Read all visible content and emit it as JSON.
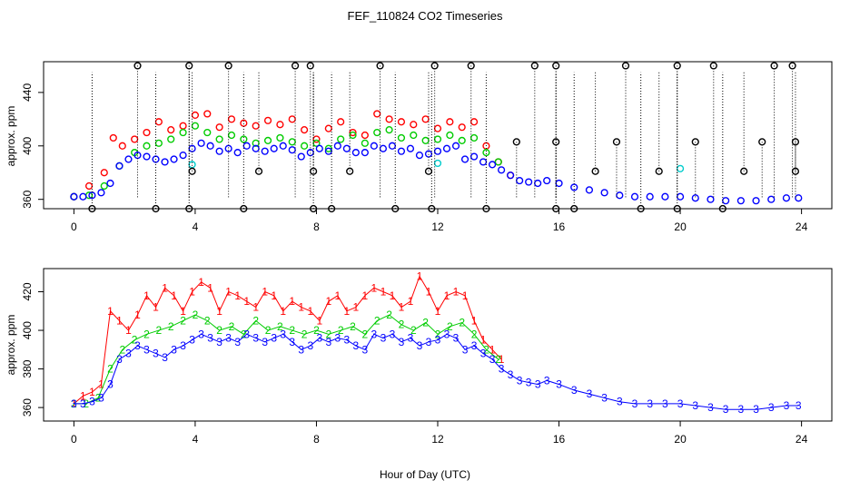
{
  "figure": {
    "title": "FEF_110824  CO2 Timeseries",
    "xlabel": "Hour of Day (UTC)"
  },
  "colors": {
    "series1": "#ff0000",
    "series2": "#00cc00",
    "series3": "#0000ff",
    "series4": "#00cccc",
    "outlier": "#000000"
  },
  "chart_data": [
    {
      "type": "scatter",
      "panel": "top",
      "ylabel": "approx. ppm",
      "xlim": [
        -1,
        25
      ],
      "ylim": [
        353,
        463
      ],
      "x_ticks": [
        0,
        4,
        8,
        12,
        16,
        20,
        24
      ],
      "y_ticks": [
        360,
        400,
        440
      ],
      "grid": false,
      "series": [
        {
          "color": "#ff0000",
          "marker": "circle",
          "x": [
            0,
            0.5,
            1,
            1.3,
            1.6,
            2,
            2.4,
            2.8,
            3.2,
            3.6,
            4,
            4.4,
            4.8,
            5.2,
            5.6,
            6,
            6.4,
            6.8,
            7.2,
            7.6,
            8,
            8.4,
            8.8,
            9.2,
            9.6,
            10,
            10.4,
            10.8,
            11.2,
            11.6,
            12,
            12.4,
            12.8,
            13.2,
            13.6,
            14,
            14.4
          ],
          "y": [
            362,
            370,
            380,
            406,
            400,
            405,
            410,
            418,
            412,
            415,
            423,
            424,
            414,
            420,
            417,
            415,
            419,
            416,
            420,
            412,
            405,
            413,
            418,
            410,
            408,
            424,
            420,
            418,
            416,
            420,
            413,
            418,
            414,
            418,
            400,
            388,
            378
          ]
        },
        {
          "color": "#00cc00",
          "marker": "circle",
          "x": [
            0,
            0.5,
            1,
            1.5,
            2,
            2.4,
            2.8,
            3.2,
            3.6,
            4,
            4.4,
            4.8,
            5.2,
            5.6,
            6,
            6.4,
            6.8,
            7.2,
            7.6,
            8,
            8.4,
            8.8,
            9.2,
            9.6,
            10,
            10.4,
            10.8,
            11.2,
            11.6,
            12,
            12.4,
            12.8,
            13.2,
            13.6,
            14
          ],
          "y": [
            362,
            363,
            370,
            385,
            395,
            400,
            402,
            405,
            410,
            415,
            410,
            405,
            408,
            405,
            402,
            404,
            406,
            403,
            400,
            402,
            398,
            405,
            408,
            402,
            410,
            412,
            406,
            408,
            404,
            405,
            408,
            404,
            406,
            395,
            388
          ]
        },
        {
          "color": "#0000ff",
          "marker": "circle",
          "x": [
            0,
            0.3,
            0.6,
            0.9,
            1.2,
            1.5,
            1.8,
            2.1,
            2.4,
            2.7,
            3,
            3.3,
            3.6,
            3.9,
            4.2,
            4.5,
            4.8,
            5.1,
            5.4,
            5.7,
            6,
            6.3,
            6.6,
            6.9,
            7.2,
            7.5,
            7.8,
            8.1,
            8.4,
            8.7,
            9,
            9.3,
            9.6,
            9.9,
            10.2,
            10.5,
            10.8,
            11.1,
            11.4,
            11.7,
            12,
            12.3,
            12.6,
            12.9,
            13.2,
            13.5,
            13.8,
            14.1,
            14.4,
            14.7,
            15,
            15.3,
            15.6,
            16,
            16.5,
            17,
            17.5,
            18,
            18.5,
            19,
            19.5,
            20,
            20.5,
            21,
            21.5,
            22,
            22.5,
            23,
            23.5,
            23.9
          ],
          "y": [
            362,
            362,
            363,
            365,
            372,
            385,
            390,
            393,
            392,
            390,
            388,
            390,
            393,
            398,
            402,
            400,
            396,
            398,
            395,
            400,
            398,
            396,
            398,
            400,
            397,
            392,
            395,
            398,
            396,
            400,
            398,
            395,
            395,
            400,
            398,
            400,
            396,
            398,
            393,
            394,
            396,
            398,
            400,
            390,
            392,
            388,
            386,
            382,
            378,
            374,
            373,
            372,
            374,
            372,
            369,
            367,
            365,
            363,
            362,
            362,
            362,
            362,
            361,
            360,
            359,
            359,
            359,
            360,
            361,
            361
          ]
        },
        {
          "color": "#00cccc",
          "marker": "circle",
          "x": [
            3.9,
            12,
            20
          ],
          "y": [
            386,
            387,
            383
          ]
        },
        {
          "color": "#000000",
          "marker": "circle",
          "x": [
            2.1,
            3.8,
            5.1,
            7.3,
            7.8,
            10.1,
            11.9,
            13.1,
            15.2,
            15.9,
            18.2,
            19.9,
            21.1,
            23.1,
            23.7,
            0.6,
            2.7,
            3.8,
            5.6,
            7.9,
            8.5,
            10.6,
            11.8,
            13.6,
            15.9,
            16.5,
            18.7,
            19.9,
            21.4,
            14.6,
            15.9,
            17.9,
            20.5,
            22.7,
            23.8,
            3.9,
            6.1,
            7.9,
            9.1,
            11.7,
            17.2,
            19.3,
            22.1,
            23.8
          ],
          "y": [
            460,
            460,
            460,
            460,
            460,
            460,
            460,
            460,
            460,
            460,
            460,
            460,
            460,
            460,
            460,
            353,
            353,
            353,
            353,
            353,
            353,
            353,
            353,
            353,
            353,
            353,
            353,
            353,
            353,
            403,
            403,
            403,
            403,
            403,
            403,
            381,
            381,
            381,
            381,
            381,
            381,
            381,
            381,
            381
          ]
        }
      ]
    },
    {
      "type": "line",
      "panel": "bottom",
      "ylabel": "approx. ppm",
      "xlim": [
        -1,
        25
      ],
      "ylim": [
        353,
        432
      ],
      "x_ticks": [
        0,
        4,
        8,
        12,
        16,
        20,
        24
      ],
      "y_ticks": [
        360,
        380,
        400,
        420
      ],
      "grid": false,
      "series": [
        {
          "color": "#ff0000",
          "marker": "1",
          "x": [
            0,
            0.3,
            0.6,
            0.9,
            1.2,
            1.5,
            1.8,
            2.1,
            2.4,
            2.7,
            3,
            3.3,
            3.6,
            3.9,
            4.2,
            4.5,
            4.8,
            5.1,
            5.4,
            5.7,
            6,
            6.3,
            6.6,
            6.9,
            7.2,
            7.5,
            7.8,
            8.1,
            8.4,
            8.7,
            9,
            9.3,
            9.6,
            9.9,
            10.2,
            10.5,
            10.8,
            11.1,
            11.4,
            11.7,
            12,
            12.3,
            12.6,
            12.9,
            13.2,
            13.5,
            13.8,
            14.1
          ],
          "y": [
            362,
            366,
            368,
            372,
            410,
            405,
            400,
            408,
            418,
            412,
            422,
            418,
            410,
            420,
            425,
            422,
            410,
            420,
            418,
            415,
            412,
            420,
            418,
            410,
            415,
            412,
            410,
            405,
            415,
            418,
            410,
            412,
            418,
            422,
            420,
            418,
            412,
            415,
            428,
            420,
            410,
            418,
            420,
            418,
            405,
            395,
            390,
            385
          ]
        },
        {
          "color": "#00cc00",
          "marker": "2",
          "x": [
            0,
            0.4,
            0.8,
            1.2,
            1.6,
            2,
            2.4,
            2.8,
            3.2,
            3.6,
            4,
            4.4,
            4.8,
            5.2,
            5.6,
            6,
            6.4,
            6.8,
            7.2,
            7.6,
            8,
            8.4,
            8.8,
            9.2,
            9.6,
            10,
            10.4,
            10.8,
            11.2,
            11.6,
            12,
            12.4,
            12.8,
            13.2,
            13.6,
            14
          ],
          "y": [
            362,
            362,
            365,
            380,
            390,
            395,
            398,
            400,
            402,
            405,
            408,
            405,
            400,
            402,
            398,
            405,
            400,
            402,
            400,
            398,
            400,
            398,
            400,
            402,
            398,
            405,
            408,
            403,
            400,
            404,
            398,
            402,
            404,
            398,
            390,
            385
          ]
        },
        {
          "color": "#0000ff",
          "marker": "3",
          "x": [
            0,
            0.3,
            0.6,
            0.9,
            1.2,
            1.5,
            1.8,
            2.1,
            2.4,
            2.7,
            3,
            3.3,
            3.6,
            3.9,
            4.2,
            4.5,
            4.8,
            5.1,
            5.4,
            5.7,
            6,
            6.3,
            6.6,
            6.9,
            7.2,
            7.5,
            7.8,
            8.1,
            8.4,
            8.7,
            9,
            9.3,
            9.6,
            9.9,
            10.2,
            10.5,
            10.8,
            11.1,
            11.4,
            11.7,
            12,
            12.3,
            12.6,
            12.9,
            13.2,
            13.5,
            13.8,
            14.1,
            14.4,
            14.7,
            15,
            15.3,
            15.6,
            16,
            16.5,
            17,
            17.5,
            18,
            18.5,
            19,
            19.5,
            20,
            20.5,
            21,
            21.5,
            22,
            22.5,
            23,
            23.5,
            23.9
          ],
          "y": [
            362,
            362,
            363,
            365,
            372,
            385,
            388,
            392,
            390,
            388,
            386,
            390,
            392,
            395,
            398,
            396,
            394,
            396,
            394,
            398,
            396,
            394,
            396,
            398,
            394,
            390,
            392,
            396,
            394,
            396,
            395,
            392,
            390,
            398,
            396,
            398,
            394,
            396,
            392,
            394,
            395,
            398,
            396,
            390,
            392,
            388,
            385,
            380,
            377,
            374,
            373,
            372,
            374,
            372,
            369,
            367,
            365,
            363,
            362,
            362,
            362,
            362,
            361,
            360,
            359,
            359,
            359,
            360,
            361,
            361
          ]
        }
      ]
    }
  ]
}
